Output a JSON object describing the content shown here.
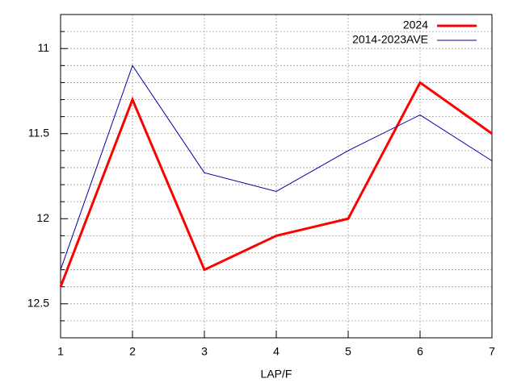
{
  "chart_data": {
    "type": "line",
    "x": [
      1,
      2,
      3,
      4,
      5,
      6,
      7
    ],
    "xlabel": "LAP/F",
    "xlim": [
      1,
      7
    ],
    "xticks": [
      1,
      2,
      3,
      4,
      5,
      6,
      7
    ],
    "ylim": [
      10.8,
      12.7
    ],
    "yticks": [
      11,
      11.5,
      12,
      12.5
    ],
    "yminorticks": [
      10.9,
      11.1,
      11.2,
      11.3,
      11.4,
      11.6,
      11.7,
      11.8,
      11.9,
      12.1,
      12.2,
      12.3,
      12.4,
      12.6
    ],
    "y_reversed": true,
    "grid": true,
    "legend": "top-right",
    "series": [
      {
        "name": "2024",
        "color": "#ff0000",
        "width": 3,
        "values": [
          12.4,
          11.3,
          12.3,
          12.1,
          12.0,
          11.2,
          11.5
        ]
      },
      {
        "name": "2014-2023AVE",
        "color": "#0000a0",
        "width": 1,
        "values": [
          12.3,
          11.1,
          11.73,
          11.84,
          11.6,
          11.39,
          11.66
        ]
      }
    ]
  }
}
